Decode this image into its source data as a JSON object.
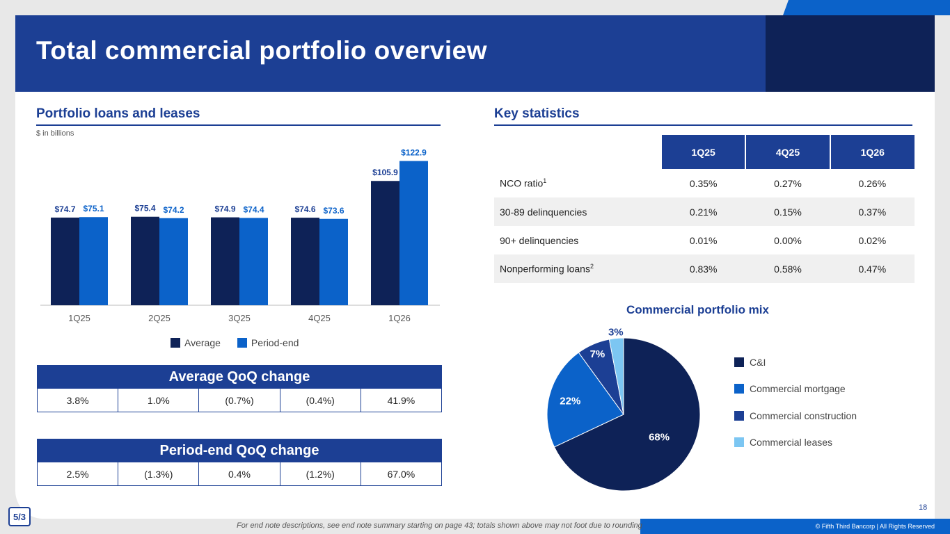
{
  "title": "Total commercial portfolio overview",
  "left": {
    "section_title": "Portfolio loans and leases",
    "unit_note": "$ in billions",
    "chart_data": {
      "type": "bar",
      "categories": [
        "1Q25",
        "2Q25",
        "3Q25",
        "4Q25",
        "1Q26"
      ],
      "series": [
        {
          "name": "Average",
          "values": [
            74.7,
            75.4,
            74.9,
            74.6,
            105.9
          ],
          "labels": [
            "$74.7",
            "$75.4",
            "$74.9",
            "$74.6",
            "$105.9"
          ],
          "color": "#0e2257"
        },
        {
          "name": "Period-end",
          "values": [
            75.1,
            74.2,
            74.4,
            73.6,
            122.9
          ],
          "labels": [
            "$75.1",
            "$74.2",
            "$74.4",
            "$73.6",
            "$122.9"
          ],
          "color": "#0b62c9"
        }
      ],
      "ylim": [
        0,
        130
      ],
      "title": "",
      "xlabel": "",
      "ylabel": "",
      "legend": "bottom"
    },
    "avg_qoq": {
      "title": "Average QoQ change",
      "values": [
        "3.8%",
        "1.0%",
        "(0.7%)",
        "(0.4%)",
        "41.9%"
      ]
    },
    "pe_qoq": {
      "title": "Period-end QoQ change",
      "values": [
        "2.5%",
        "(1.3%)",
        "0.4%",
        "(1.2%)",
        "67.0%"
      ]
    }
  },
  "right": {
    "section_title": "Key statistics",
    "stats": {
      "columns": [
        "1Q25",
        "4Q25",
        "1Q26"
      ],
      "rows": [
        {
          "label": "NCO ratio",
          "sup": "1",
          "values": [
            "0.35%",
            "0.27%",
            "0.26%"
          ]
        },
        {
          "label": "30-89 delinquencies",
          "sup": "",
          "values": [
            "0.21%",
            "0.15%",
            "0.37%"
          ]
        },
        {
          "label": "90+ delinquencies",
          "sup": "",
          "values": [
            "0.01%",
            "0.00%",
            "0.02%"
          ]
        },
        {
          "label": "Nonperforming loans",
          "sup": "2",
          "values": [
            "0.83%",
            "0.58%",
            "0.47%"
          ]
        }
      ]
    },
    "mix": {
      "title": "Commercial portfolio mix",
      "slices": [
        {
          "name": "C&I",
          "value": 68,
          "label": "68%",
          "color": "#0e2257"
        },
        {
          "name": "Commercial mortgage",
          "value": 22,
          "label": "22%",
          "color": "#0b62c9"
        },
        {
          "name": "Commercial construction",
          "value": 7,
          "label": "7%",
          "color": "#1c3f94"
        },
        {
          "name": "Commercial leases",
          "value": 3,
          "label": "3%",
          "color": "#7cc6f2"
        }
      ]
    }
  },
  "footer": {
    "page_number": "18",
    "note": "For end note descriptions, see end note summary starting on page 43; totals shown above may not foot due to rounding",
    "copyright": "© Fifth Third Bancorp | All Rights Reserved",
    "logo_text": "5/3"
  }
}
